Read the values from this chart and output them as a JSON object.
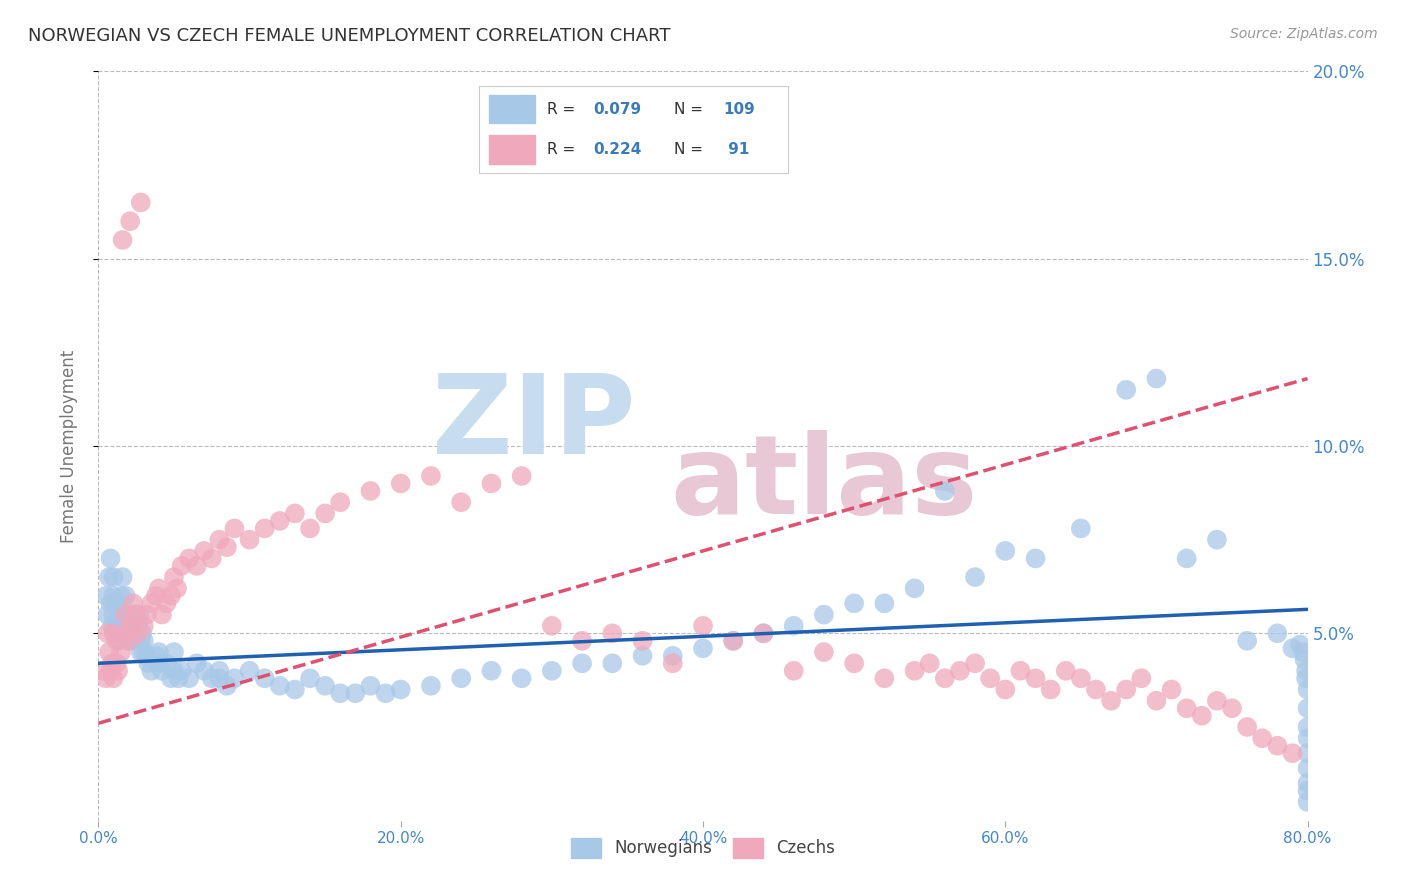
{
  "title": "NORWEGIAN VS CZECH FEMALE UNEMPLOYMENT CORRELATION CHART",
  "source": "Source: ZipAtlas.com",
  "ylabel": "Female Unemployment",
  "xlim": [
    0.0,
    0.8
  ],
  "ylim": [
    0.0,
    0.2
  ],
  "xticks": [
    0.0,
    0.2,
    0.4,
    0.6,
    0.8
  ],
  "yticks": [
    0.05,
    0.1,
    0.15,
    0.2
  ],
  "xticklabels": [
    "0.0%",
    "20.0%",
    "40.0%",
    "60.0%",
    "80.0%"
  ],
  "yticklabels": [
    "5.0%",
    "10.0%",
    "15.0%",
    "20.0%"
  ],
  "norwegian_color": "#a8c8e8",
  "czech_color": "#f0a8bc",
  "norwegian_line_color": "#2060b0",
  "czech_line_color": "#e05070",
  "legend_text_color": "#3a7abf",
  "title_color": "#333333",
  "watermark_zip_color": "#c8dcf0",
  "watermark_atlas_color": "#e8c8d4",
  "R_norwegian": "0.079",
  "N_norwegian": "109",
  "R_czech": "0.224",
  "N_czech": "91",
  "norwegian_slope": 0.018,
  "norwegian_intercept": 0.042,
  "czech_slope": 0.115,
  "czech_intercept": 0.026,
  "background_color": "#ffffff",
  "grid_color": "#bbbbbb",
  "tick_color": "#4488cc",
  "nor_x": [
    0.005,
    0.006,
    0.007,
    0.008,
    0.008,
    0.009,
    0.01,
    0.01,
    0.01,
    0.012,
    0.012,
    0.013,
    0.014,
    0.015,
    0.015,
    0.016,
    0.016,
    0.017,
    0.018,
    0.018,
    0.02,
    0.02,
    0.021,
    0.022,
    0.023,
    0.025,
    0.025,
    0.026,
    0.027,
    0.028,
    0.028,
    0.029,
    0.03,
    0.03,
    0.032,
    0.033,
    0.035,
    0.038,
    0.04,
    0.04,
    0.042,
    0.045,
    0.048,
    0.05,
    0.05,
    0.053,
    0.055,
    0.06,
    0.065,
    0.07,
    0.075,
    0.08,
    0.08,
    0.085,
    0.09,
    0.1,
    0.11,
    0.12,
    0.13,
    0.14,
    0.15,
    0.16,
    0.17,
    0.18,
    0.19,
    0.2,
    0.22,
    0.24,
    0.26,
    0.28,
    0.3,
    0.32,
    0.34,
    0.36,
    0.38,
    0.4,
    0.42,
    0.44,
    0.46,
    0.48,
    0.5,
    0.52,
    0.54,
    0.56,
    0.58,
    0.6,
    0.62,
    0.65,
    0.68,
    0.7,
    0.72,
    0.74,
    0.76,
    0.78,
    0.79,
    0.795,
    0.797,
    0.798,
    0.799,
    0.799,
    0.8,
    0.8,
    0.8,
    0.8,
    0.8,
    0.8,
    0.8,
    0.8,
    0.8
  ],
  "nor_y": [
    0.06,
    0.055,
    0.065,
    0.058,
    0.07,
    0.052,
    0.06,
    0.055,
    0.065,
    0.058,
    0.052,
    0.048,
    0.055,
    0.06,
    0.05,
    0.055,
    0.065,
    0.05,
    0.06,
    0.055,
    0.048,
    0.055,
    0.05,
    0.055,
    0.052,
    0.05,
    0.048,
    0.052,
    0.055,
    0.048,
    0.045,
    0.05,
    0.048,
    0.045,
    0.044,
    0.042,
    0.04,
    0.044,
    0.042,
    0.045,
    0.04,
    0.042,
    0.038,
    0.04,
    0.045,
    0.038,
    0.04,
    0.038,
    0.042,
    0.04,
    0.038,
    0.038,
    0.04,
    0.036,
    0.038,
    0.04,
    0.038,
    0.036,
    0.035,
    0.038,
    0.036,
    0.034,
    0.034,
    0.036,
    0.034,
    0.035,
    0.036,
    0.038,
    0.04,
    0.038,
    0.04,
    0.042,
    0.042,
    0.044,
    0.044,
    0.046,
    0.048,
    0.05,
    0.052,
    0.055,
    0.058,
    0.058,
    0.062,
    0.088,
    0.065,
    0.072,
    0.07,
    0.078,
    0.115,
    0.118,
    0.07,
    0.075,
    0.048,
    0.05,
    0.046,
    0.047,
    0.045,
    0.043,
    0.04,
    0.038,
    0.035,
    0.03,
    0.025,
    0.022,
    0.018,
    0.014,
    0.01,
    0.008,
    0.005
  ],
  "cze_x": [
    0.003,
    0.005,
    0.006,
    0.007,
    0.008,
    0.009,
    0.01,
    0.01,
    0.012,
    0.012,
    0.013,
    0.015,
    0.016,
    0.018,
    0.018,
    0.02,
    0.021,
    0.022,
    0.023,
    0.025,
    0.026,
    0.028,
    0.03,
    0.032,
    0.035,
    0.038,
    0.04,
    0.042,
    0.045,
    0.048,
    0.05,
    0.052,
    0.055,
    0.06,
    0.065,
    0.07,
    0.075,
    0.08,
    0.085,
    0.09,
    0.1,
    0.11,
    0.12,
    0.13,
    0.14,
    0.15,
    0.16,
    0.18,
    0.2,
    0.22,
    0.24,
    0.26,
    0.28,
    0.3,
    0.32,
    0.34,
    0.36,
    0.38,
    0.4,
    0.42,
    0.44,
    0.46,
    0.48,
    0.5,
    0.52,
    0.54,
    0.55,
    0.56,
    0.57,
    0.58,
    0.59,
    0.6,
    0.61,
    0.62,
    0.63,
    0.64,
    0.65,
    0.66,
    0.67,
    0.68,
    0.69,
    0.7,
    0.71,
    0.72,
    0.73,
    0.74,
    0.75,
    0.76,
    0.77,
    0.78,
    0.79
  ],
  "cze_y": [
    0.04,
    0.038,
    0.05,
    0.045,
    0.04,
    0.042,
    0.05,
    0.038,
    0.042,
    0.048,
    0.04,
    0.045,
    0.155,
    0.05,
    0.055,
    0.048,
    0.16,
    0.052,
    0.058,
    0.055,
    0.05,
    0.165,
    0.052,
    0.055,
    0.058,
    0.06,
    0.062,
    0.055,
    0.058,
    0.06,
    0.065,
    0.062,
    0.068,
    0.07,
    0.068,
    0.072,
    0.07,
    0.075,
    0.073,
    0.078,
    0.075,
    0.078,
    0.08,
    0.082,
    0.078,
    0.082,
    0.085,
    0.088,
    0.09,
    0.092,
    0.085,
    0.09,
    0.092,
    0.052,
    0.048,
    0.05,
    0.048,
    0.042,
    0.052,
    0.048,
    0.05,
    0.04,
    0.045,
    0.042,
    0.038,
    0.04,
    0.042,
    0.038,
    0.04,
    0.042,
    0.038,
    0.035,
    0.04,
    0.038,
    0.035,
    0.04,
    0.038,
    0.035,
    0.032,
    0.035,
    0.038,
    0.032,
    0.035,
    0.03,
    0.028,
    0.032,
    0.03,
    0.025,
    0.022,
    0.02,
    0.018
  ]
}
